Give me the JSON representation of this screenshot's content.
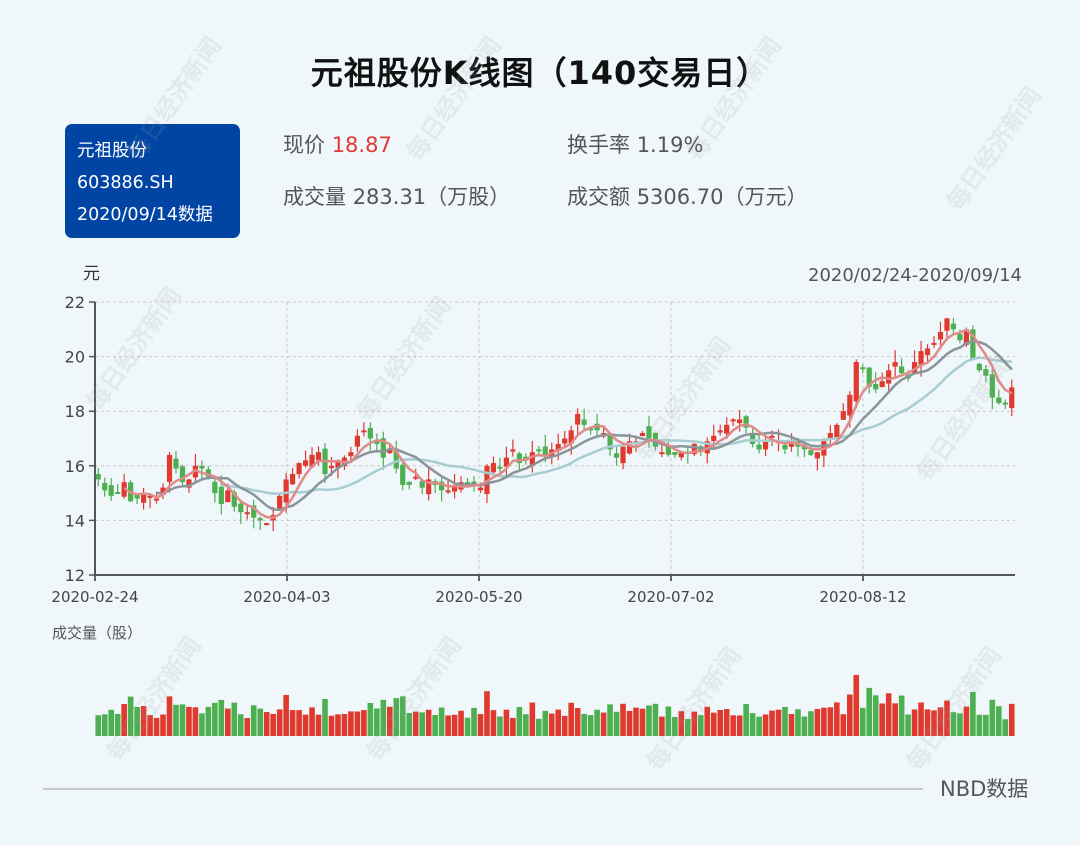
{
  "title": "元祖股份K线图（140交易日）",
  "badge": {
    "name": "元祖股份",
    "code": "603886.SH",
    "date": "2020/09/14数据"
  },
  "stats": {
    "price_label": "现价",
    "price_value": "18.87",
    "turnover_label": "换手率",
    "turnover_value": "1.19%",
    "volume_label": "成交量",
    "volume_value": "283.31（万股）",
    "amount_label": "成交额",
    "amount_value": "5306.70（万元）"
  },
  "unit_label": "元",
  "date_range": "2020/02/24-2020/09/14",
  "volume_label": "成交量（股）",
  "footer": "NBD数据",
  "watermark": "每日经济新闻",
  "colors": {
    "up": "#e03a2f",
    "down": "#4caf50",
    "ma5": "#e08a8a",
    "ma10": "#8a9499",
    "ma20": "#a7cdd3",
    "badge": "#0044a4"
  },
  "chart_data": [
    {
      "type": "candlestick",
      "title": "元祖股份K线图（140交易日）",
      "ylabel": "元",
      "ylim": [
        12,
        22
      ],
      "yticks": [
        12,
        14,
        16,
        18,
        20,
        22
      ],
      "xticks": [
        "2020-02-24",
        "2020-04-03",
        "2020-05-20",
        "2020-07-02",
        "2020-08-12"
      ],
      "x_range": [
        "2020-02-24",
        "2020-09-14"
      ],
      "n_days": 140,
      "grid": true,
      "series_lines": [
        "MA5",
        "MA10",
        "MA20"
      ],
      "close": [
        15.5,
        15.1,
        14.9,
        15.0,
        15.4,
        14.7,
        14.8,
        15.0,
        14.9,
        14.8,
        15.2,
        16.4,
        15.9,
        15.4,
        15.5,
        16.0,
        15.9,
        15.6,
        15.0,
        14.6,
        15.1,
        14.5,
        14.3,
        14.3,
        14.1,
        14.0,
        13.9,
        14.2,
        14.9,
        15.5,
        15.7,
        16.1,
        16.2,
        16.4,
        16.5,
        15.7,
        16.0,
        16.2,
        16.3,
        16.5,
        17.1,
        17.3,
        17.0,
        16.8,
        16.3,
        16.6,
        15.9,
        15.3,
        15.3,
        15.6,
        15.2,
        15.5,
        15.3,
        15.1,
        15.1,
        15.3,
        15.4,
        15.3,
        15.3,
        15.2,
        16.0,
        16.1,
        15.9,
        16.3,
        16.6,
        16.1,
        16.2,
        16.5,
        16.6,
        16.4,
        16.6,
        16.8,
        17.0,
        17.3,
        17.9,
        17.5,
        17.3,
        17.3,
        17.2,
        16.6,
        16.3,
        16.7,
        16.9,
        16.9,
        17.2,
        17.0,
        16.7,
        16.5,
        16.4,
        16.4,
        16.5,
        16.5,
        16.8,
        16.5,
        16.9,
        17.1,
        17.3,
        17.5,
        17.7,
        17.7,
        17.4,
        16.8,
        16.6,
        16.9,
        17.1,
        16.9,
        16.6,
        16.8,
        16.7,
        16.6,
        16.4,
        16.5,
        16.9,
        17.2,
        17.5,
        18.0,
        18.6,
        19.8,
        19.6,
        18.9,
        18.8,
        19.1,
        19.5,
        19.8,
        19.4,
        19.2,
        19.8,
        20.2,
        20.3,
        20.5,
        20.9,
        21.4,
        21.0,
        20.6,
        21.0,
        19.9,
        19.5,
        19.3,
        18.5,
        18.3,
        18.3,
        18.87
      ]
    },
    {
      "type": "bar",
      "title": "成交量（股）",
      "note": "Daily volume bars colored red (up) / green (down); relative heights only, no axis shown"
    }
  ]
}
